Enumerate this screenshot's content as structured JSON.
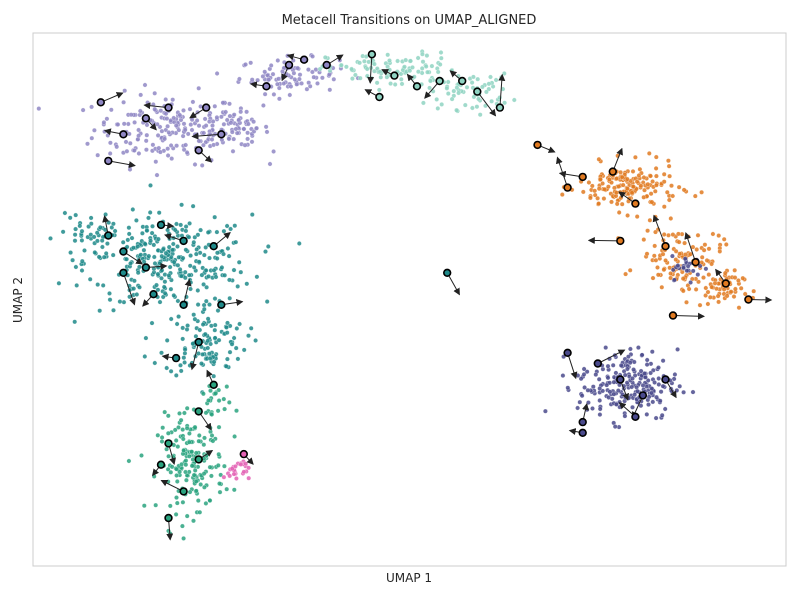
{
  "chart_data": {
    "type": "scatter",
    "title": "Metacell Transitions on UMAP_ALIGNED",
    "xlabel": "UMAP 1",
    "ylabel": "UMAP 2",
    "xlim": [
      0,
      100
    ],
    "ylim": [
      0,
      100
    ],
    "grid": false,
    "x_ticks_shown": false,
    "y_ticks_shown": false,
    "palette": {
      "purple": "#8f87c4",
      "teal": "#1f8a8a",
      "mint": "#8fd3c2",
      "green": "#2aa37f",
      "pink": "#e362b4",
      "orange": "#e07a21",
      "navy": "#4a4a8c"
    },
    "clusters": [
      {
        "color": "purple",
        "blobs": [
          [
            18,
            82,
            9,
            6,
            200
          ],
          [
            34,
            92,
            6,
            3,
            90
          ],
          [
            27,
            82,
            4,
            3,
            60
          ]
        ]
      },
      {
        "color": "teal",
        "blobs": [
          [
            18,
            57,
            10,
            8,
            300
          ],
          [
            23,
            42,
            5,
            6,
            110
          ],
          [
            7,
            62,
            3,
            4,
            40
          ]
        ]
      },
      {
        "color": "mint",
        "blobs": [
          [
            48,
            93,
            8,
            3,
            110
          ],
          [
            58,
            89,
            5,
            3,
            60
          ]
        ]
      },
      {
        "color": "green",
        "blobs": [
          [
            21,
            19,
            4,
            8,
            170
          ],
          [
            24,
            30,
            2,
            5,
            30
          ]
        ]
      },
      {
        "color": "pink",
        "blobs": [
          [
            27,
            18,
            1.5,
            2,
            25
          ]
        ]
      },
      {
        "color": "orange",
        "blobs": [
          [
            79,
            71,
            6,
            4,
            170
          ],
          [
            86,
            58,
            5,
            5,
            110
          ],
          [
            91,
            52,
            3,
            3,
            60
          ]
        ]
      },
      {
        "color": "navy",
        "blobs": [
          [
            79,
            34,
            6,
            6,
            220
          ],
          [
            87,
            56,
            2,
            2,
            25
          ]
        ]
      }
    ],
    "metacells": [
      {
        "x": 9,
        "y": 87,
        "c": "purple"
      },
      {
        "x": 15,
        "y": 84,
        "c": "purple"
      },
      {
        "x": 12,
        "y": 81,
        "c": "purple"
      },
      {
        "x": 18,
        "y": 86,
        "c": "purple"
      },
      {
        "x": 23,
        "y": 86,
        "c": "purple"
      },
      {
        "x": 25,
        "y": 81,
        "c": "purple"
      },
      {
        "x": 31,
        "y": 90,
        "c": "purple"
      },
      {
        "x": 34,
        "y": 94,
        "c": "purple"
      },
      {
        "x": 36,
        "y": 95,
        "c": "purple"
      },
      {
        "x": 39,
        "y": 94,
        "c": "purple"
      },
      {
        "x": 22,
        "y": 78,
        "c": "purple"
      },
      {
        "x": 10,
        "y": 76,
        "c": "purple"
      },
      {
        "x": 17,
        "y": 64,
        "c": "teal"
      },
      {
        "x": 12,
        "y": 59,
        "c": "teal"
      },
      {
        "x": 15,
        "y": 56,
        "c": "teal"
      },
      {
        "x": 20,
        "y": 61,
        "c": "teal"
      },
      {
        "x": 24,
        "y": 60,
        "c": "teal"
      },
      {
        "x": 16,
        "y": 51,
        "c": "teal"
      },
      {
        "x": 20,
        "y": 49,
        "c": "teal"
      },
      {
        "x": 25,
        "y": 49,
        "c": "teal"
      },
      {
        "x": 22,
        "y": 42,
        "c": "teal"
      },
      {
        "x": 19,
        "y": 39,
        "c": "teal"
      },
      {
        "x": 10,
        "y": 62,
        "c": "teal"
      },
      {
        "x": 12,
        "y": 55,
        "c": "teal"
      },
      {
        "x": 55,
        "y": 55,
        "c": "teal"
      },
      {
        "x": 45,
        "y": 96,
        "c": "mint"
      },
      {
        "x": 48,
        "y": 92,
        "c": "mint"
      },
      {
        "x": 51,
        "y": 90,
        "c": "mint"
      },
      {
        "x": 54,
        "y": 91,
        "c": "mint"
      },
      {
        "x": 57,
        "y": 91,
        "c": "mint"
      },
      {
        "x": 59,
        "y": 89,
        "c": "mint"
      },
      {
        "x": 62,
        "y": 86,
        "c": "mint"
      },
      {
        "x": 46,
        "y": 88,
        "c": "mint"
      },
      {
        "x": 24,
        "y": 34,
        "c": "green"
      },
      {
        "x": 22,
        "y": 29,
        "c": "green"
      },
      {
        "x": 18,
        "y": 23,
        "c": "green"
      },
      {
        "x": 22,
        "y": 20,
        "c": "green"
      },
      {
        "x": 20,
        "y": 14,
        "c": "green"
      },
      {
        "x": 18,
        "y": 9,
        "c": "green"
      },
      {
        "x": 17,
        "y": 19,
        "c": "green"
      },
      {
        "x": 28,
        "y": 21,
        "c": "pink"
      },
      {
        "x": 67,
        "y": 79,
        "c": "orange"
      },
      {
        "x": 71,
        "y": 71,
        "c": "orange"
      },
      {
        "x": 77,
        "y": 74,
        "c": "orange"
      },
      {
        "x": 80,
        "y": 68,
        "c": "orange"
      },
      {
        "x": 84,
        "y": 60,
        "c": "orange"
      },
      {
        "x": 88,
        "y": 57,
        "c": "orange"
      },
      {
        "x": 92,
        "y": 53,
        "c": "orange"
      },
      {
        "x": 95,
        "y": 50,
        "c": "orange"
      },
      {
        "x": 85,
        "y": 47,
        "c": "orange"
      },
      {
        "x": 78,
        "y": 61,
        "c": "orange"
      },
      {
        "x": 73,
        "y": 73,
        "c": "orange"
      },
      {
        "x": 71,
        "y": 40,
        "c": "navy"
      },
      {
        "x": 75,
        "y": 38,
        "c": "navy"
      },
      {
        "x": 81,
        "y": 32,
        "c": "navy"
      },
      {
        "x": 78,
        "y": 35,
        "c": "navy"
      },
      {
        "x": 73,
        "y": 27,
        "c": "navy"
      },
      {
        "x": 84,
        "y": 35,
        "c": "navy"
      },
      {
        "x": 80,
        "y": 28,
        "c": "navy"
      },
      {
        "x": 73,
        "y": 25,
        "c": "navy"
      }
    ]
  }
}
